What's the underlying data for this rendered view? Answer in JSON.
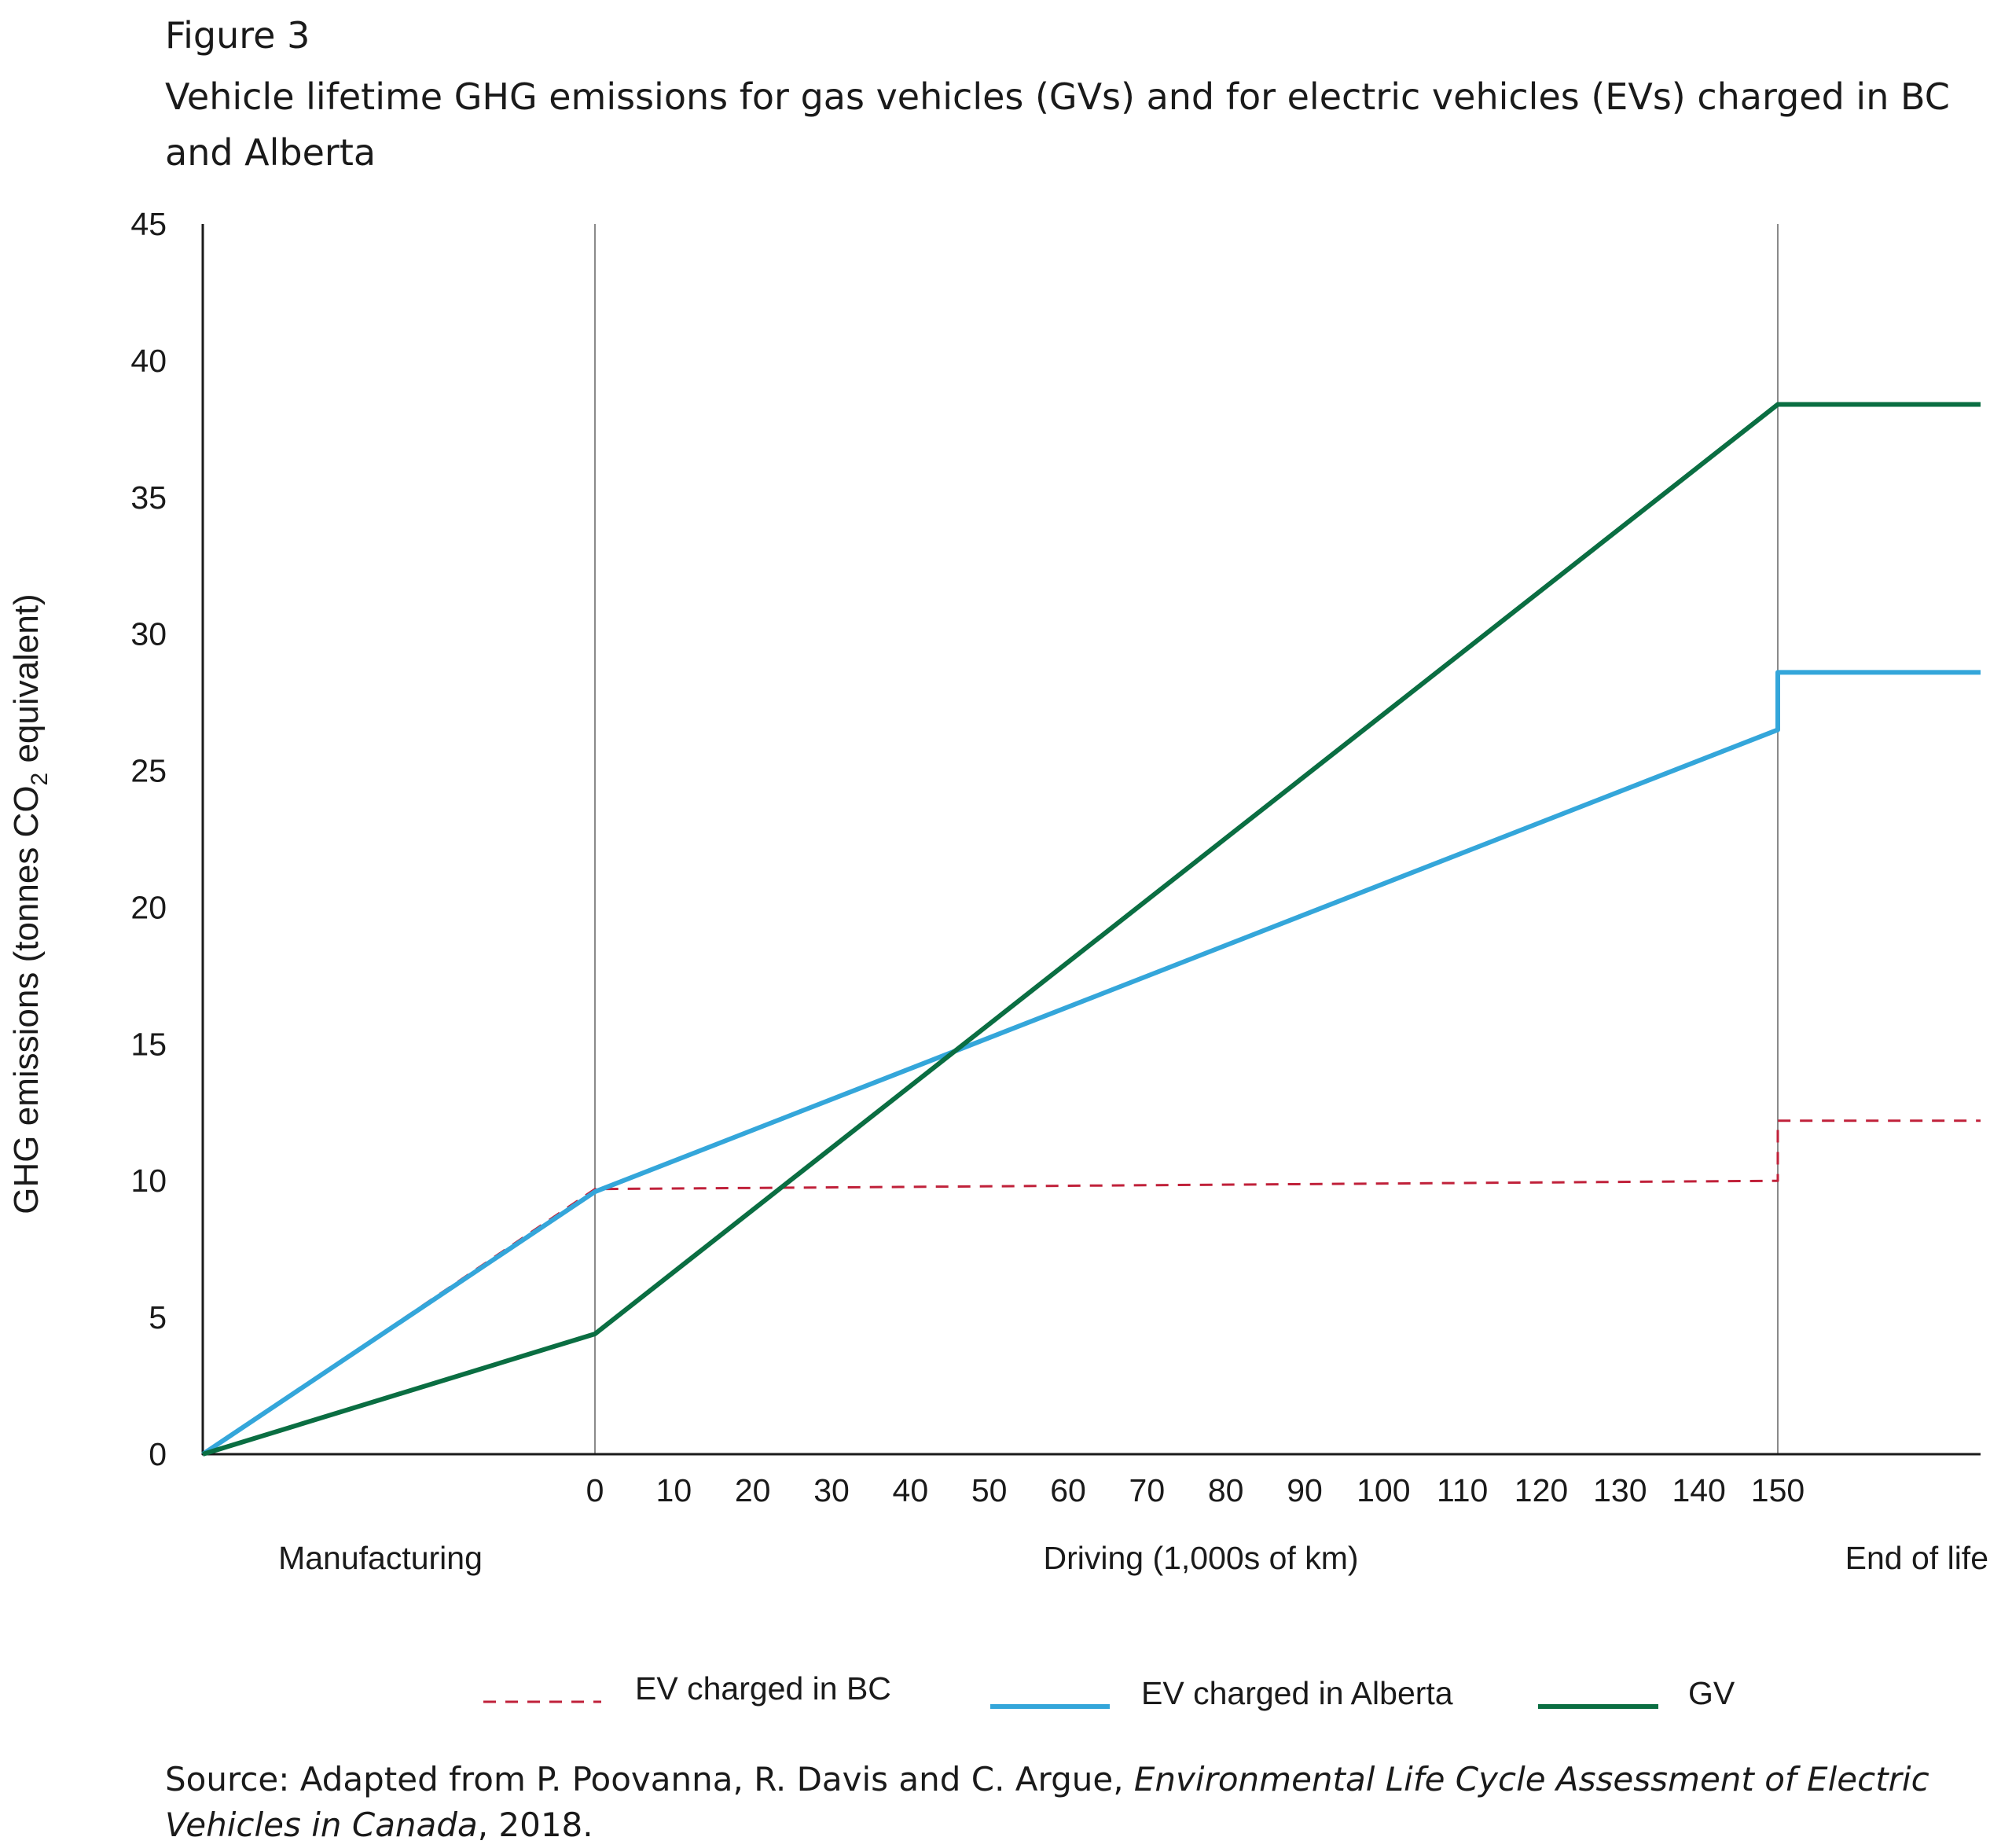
{
  "figure": {
    "label": "Figure 3",
    "title": "Vehicle lifetime GHG emissions for gas vehicles (GVs) and for electric vehicles (EVs) charged in BC and Alberta",
    "source_prefix": "Source: Adapted from P. Poovanna, R. Davis and C. Argue, ",
    "source_italic": "Environmental Life Cycle Assessment of Electric Vehicles in Canada",
    "source_suffix": ", 2018."
  },
  "chart_data": {
    "type": "line",
    "title": "Vehicle lifetime GHG emissions for gas vehicles (GVs) and for electric vehicles (EVs) charged in BC and Alberta",
    "ylabel_main": "GHG emissions (tonnes CO",
    "ylabel_sub": "2",
    "ylabel_end": " equivalent)",
    "xlabel": "Driving (1,000s of km)",
    "ylim": [
      0,
      45
    ],
    "yticks": [
      0,
      5,
      10,
      15,
      20,
      25,
      30,
      35,
      40,
      45
    ],
    "xticks": [
      0,
      10,
      20,
      30,
      40,
      50,
      60,
      70,
      80,
      90,
      100,
      110,
      120,
      130,
      140,
      150
    ],
    "phases": {
      "manufacturing": "Manufacturing",
      "driving": "Driving (1,000s of km)",
      "end_of_life": "End of life"
    },
    "legend_position": "bottom",
    "series": [
      {
        "name": "EV charged in BC",
        "color": "#c0213a",
        "style": "dashed",
        "points": [
          {
            "phase": "start",
            "y": 0
          },
          {
            "phase": "driving",
            "km": 0,
            "y": 9.7
          },
          {
            "phase": "driving",
            "km": 150,
            "y": 10.0
          },
          {
            "phase": "end_of_life_start",
            "y": 12.2
          },
          {
            "phase": "end_of_life_end",
            "y": 12.2
          }
        ]
      },
      {
        "name": "EV charged in Alberta",
        "color": "#34a6da",
        "style": "solid",
        "points": [
          {
            "phase": "start",
            "y": 0
          },
          {
            "phase": "driving",
            "km": 0,
            "y": 9.6
          },
          {
            "phase": "driving",
            "km": 150,
            "y": 26.5
          },
          {
            "phase": "end_of_life_start",
            "y": 28.6
          },
          {
            "phase": "end_of_life_end",
            "y": 28.6
          }
        ]
      },
      {
        "name": "GV",
        "color": "#0a6e42",
        "style": "solid",
        "points": [
          {
            "phase": "start",
            "y": 0
          },
          {
            "phase": "driving",
            "km": 0,
            "y": 4.4
          },
          {
            "phase": "driving",
            "km": 150,
            "y": 38.4
          },
          {
            "phase": "end_of_life_start",
            "y": 38.4
          },
          {
            "phase": "end_of_life_end",
            "y": 38.4
          }
        ]
      }
    ]
  }
}
